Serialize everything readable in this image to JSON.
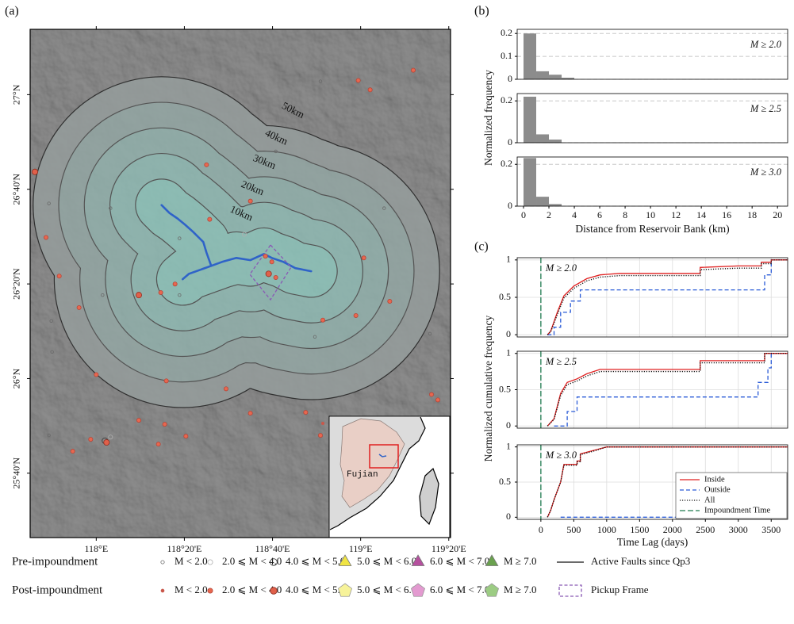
{
  "chart_data": [
    {
      "type": "map",
      "panel_label": "(a)",
      "xlim": [
        117.75,
        119.34
      ],
      "ylim": [
        25.44,
        27.23
      ],
      "xticks": [
        {
          "value": 118,
          "label": "118°E"
        },
        {
          "value": 118.3333,
          "label": "118°20'E"
        },
        {
          "value": 118.6667,
          "label": "118°40'E"
        },
        {
          "value": 119,
          "label": "119°E"
        },
        {
          "value": 119.3333,
          "label": "119°20'E"
        }
      ],
      "yticks": [
        {
          "value": 27,
          "label": "27°N"
        },
        {
          "value": 26.6667,
          "label": "26°40'N"
        },
        {
          "value": 26.3333,
          "label": "26°20'N"
        },
        {
          "value": 26,
          "label": "26°N"
        },
        {
          "value": 25.6667,
          "label": "25°40'N"
        }
      ],
      "reservoir": {
        "color": "#2f63c8",
        "lines": [
          {
            "lon": [
              118.247,
              118.277,
              118.307,
              118.336,
              118.366,
              118.405,
              118.417,
              118.435,
              118.476,
              118.53,
              118.583,
              118.634,
              118.664,
              118.708,
              118.753,
              118.813
            ],
            "lat": [
              26.611,
              26.583,
              26.564,
              26.542,
              26.517,
              26.481,
              26.444,
              26.397,
              26.411,
              26.425,
              26.417,
              26.439,
              26.425,
              26.411,
              26.389,
              26.378
            ]
          },
          {
            "lon": [
              118.435,
              118.351,
              118.327
            ],
            "lat": [
              26.397,
              26.369,
              26.35
            ]
          }
        ]
      },
      "buffers_km": [
        10,
        20,
        30,
        40,
        50
      ],
      "buffer_labels": [
        "10km",
        "20km",
        "30km",
        "40km",
        "50km"
      ],
      "series": [
        {
          "name": "Pre-impoundment",
          "classes": [
            {
              "name": "M < 2.0",
              "marker": "circle",
              "size": 1.8,
              "color": "none",
              "edge": "#6a6a6a",
              "lon": [
                118.848,
                118.024,
                117.83,
                117.821,
                118.054,
                118.315,
                118.315,
                119.089,
                118.827,
                119.262,
                117.833,
                118.679,
                117.821
              ],
              "lat": [
                27.047,
                26.294,
                26.203,
                26.617,
                26.6,
                26.494,
                26.294,
                26.6,
                26.147,
                26.158,
                26.094,
                26.8,
                25.8
              ]
            },
            {
              "name": "2.0 ⩽ M < 4.0",
              "marker": "circle",
              "size": 2.6,
              "color": "none",
              "edge": "#b0b0b0",
              "lon": [
                118.054,
                118.56
              ],
              "lat": [
                25.794,
                26.508
              ]
            },
            {
              "name": "4.0 ⩽ M < 5.0",
              "marker": "circle",
              "size": 3.6,
              "color": "none",
              "edge": "#3a3a3a",
              "lon": [
                118.033
              ],
              "lat": [
                25.781
              ]
            },
            {
              "name": "5.0 ⩽ M <  6.0",
              "marker": "triangle",
              "size": 6,
              "color": "#f0e442",
              "edge": "#777777",
              "lon": [],
              "lat": []
            },
            {
              "name": "6.0 ⩽ M <  7.0",
              "marker": "triangle",
              "size": 6,
              "color": "#b5509e",
              "edge": "#777777",
              "lon": [],
              "lat": []
            },
            {
              "name": "M ≥ 7.0",
              "marker": "triangle",
              "size": 6,
              "color": "#6aa14e",
              "edge": "#777777",
              "lon": [],
              "lat": []
            }
          ]
        },
        {
          "name": "Post-impoundment",
          "classes": [
            {
              "name": "M < 2.0",
              "marker": "circle",
              "size": 1.6,
              "color": "#c9574a",
              "edge": "#c9574a",
              "lon": [
                118.857
              ],
              "lat": [
                25.842
              ]
            },
            {
              "name": "2.0 ⩽ M < 4.0",
              "marker": "circle",
              "size": 2.6,
              "color": "#e8674f",
              "edge": "#b5473a",
              "lon": [
                118.991,
                119.036,
                119.199,
                118.417,
                118.583,
                118.429,
                117.81,
                117.86,
                117.935,
                118.244,
                118.298,
                119.012,
                119.11,
                118.982,
                118.0,
                118.265,
                118.491,
                118.583,
                118.792,
                118.848,
                118.161,
                118.259,
                118.339,
                117.979,
                117.911,
                118.235,
                119.268,
                119.292,
                118.857,
                118.64,
                118.679,
                118.664
              ],
              "lat": [
                27.05,
                27.017,
                27.086,
                26.753,
                26.625,
                26.561,
                26.497,
                26.361,
                26.25,
                26.303,
                26.333,
                26.425,
                26.272,
                26.222,
                26.014,
                25.992,
                25.964,
                25.878,
                25.881,
                25.8,
                25.853,
                25.839,
                25.797,
                25.786,
                25.744,
                25.769,
                25.944,
                25.925,
                26.206,
                26.431,
                26.356,
                26.411
              ]
            },
            {
              "name": "4.0 ⩽ M < 5.0",
              "marker": "circle",
              "size": 3.6,
              "color": "#e0604a",
              "edge": "#8f2f22",
              "lon": [
                118.161,
                118.652,
                118.039,
                117.768
              ],
              "lat": [
                26.294,
                26.369,
                25.775,
                26.728
              ]
            },
            {
              "name": "5.0 ⩽ M <  6.0",
              "marker": "pentagon",
              "size": 6,
              "color": "#f7f39a",
              "edge": "#999999",
              "lon": [],
              "lat": []
            },
            {
              "name": "6.0 ⩽ M <  7.0",
              "marker": "pentagon",
              "size": 6,
              "color": "#e39ad0",
              "edge": "#999999",
              "lon": [],
              "lat": []
            },
            {
              "name": "M ≥ 7.0",
              "marker": "pentagon",
              "size": 6,
              "color": "#9ccc83",
              "edge": "#999999",
              "lon": [],
              "lat": []
            }
          ]
        }
      ],
      "faults_label": "Active Faults since Qp3",
      "pickup_frame_label": "Pickup Frame",
      "inset_label": "Fujian"
    },
    {
      "type": "histogram",
      "panel_label": "(b)",
      "ylabel": "Normalized frequency",
      "annotation": "M ≥ 2.0",
      "bins": [
        0,
        1,
        2,
        3,
        4
      ],
      "values": [
        0.2,
        0.035,
        0.02,
        0.007
      ],
      "color": "#8c8c8c",
      "xlim": [
        -0.5,
        20.8
      ],
      "ylim": [
        0,
        0.218
      ],
      "yticks": [
        0,
        0.1,
        0.2
      ],
      "grid": true
    },
    {
      "type": "histogram",
      "annotation": "M ≥ 2.5",
      "bins": [
        0,
        1,
        2,
        3
      ],
      "values": [
        0.22,
        0.04,
        0.015
      ],
      "color": "#8c8c8c",
      "xlim": [
        -0.5,
        20.8
      ],
      "ylim": [
        0,
        0.235
      ],
      "yticks": [
        0,
        0.2
      ],
      "grid": true
    },
    {
      "type": "histogram",
      "annotation": "M ≥ 3.0",
      "xlabel": "Distance from Reservoir Bank (km)",
      "bins": [
        0,
        1,
        2,
        3
      ],
      "values": [
        0.23,
        0.045,
        0.01
      ],
      "color": "#8c8c8c",
      "xlim": [
        -0.5,
        20.8
      ],
      "ylim": [
        0,
        0.235
      ],
      "yticks": [
        0,
        0.2
      ],
      "xticks": [
        0,
        2,
        4,
        6,
        8,
        10,
        12,
        14,
        16,
        18,
        20
      ],
      "grid": true
    },
    {
      "type": "line",
      "panel_label": "(c)",
      "ylabel": "Normalized cumulative frequency",
      "annotation": "M ≥ 2.0",
      "xlim": [
        -360,
        3750
      ],
      "ylim": [
        -0.03,
        1.03
      ],
      "yticks": [
        0,
        0.5,
        1
      ],
      "grid": true,
      "legend": false,
      "series": [
        {
          "color": "#2a5bd7",
          "dash": "dashed",
          "x": [
            100,
            200,
            200,
            300,
            300,
            450,
            450,
            600,
            600,
            3400,
            3400,
            3500,
            3500,
            3750
          ],
          "values": [
            0,
            0,
            0.1,
            0.1,
            0.3,
            0.3,
            0.45,
            0.45,
            0.6,
            0.6,
            0.8,
            0.8,
            1,
            1
          ]
        },
        {
          "color": "#e02020",
          "dash": "solid",
          "x": [
            100,
            150,
            250,
            350,
            500,
            700,
            900,
            1200,
            2420,
            2420,
            3000,
            3350,
            3350,
            3500,
            3500,
            3750
          ],
          "values": [
            0,
            0.05,
            0.3,
            0.52,
            0.65,
            0.75,
            0.8,
            0.82,
            0.82,
            0.9,
            0.92,
            0.92,
            0.97,
            0.97,
            1,
            1
          ]
        },
        {
          "color": "#111111",
          "dash": "dotted",
          "x": [
            100,
            150,
            250,
            350,
            500,
            700,
            900,
            1200,
            2420,
            2420,
            3000,
            3350,
            3350,
            3500,
            3500,
            3750
          ],
          "values": [
            0,
            0.04,
            0.27,
            0.49,
            0.62,
            0.72,
            0.77,
            0.79,
            0.79,
            0.87,
            0.89,
            0.89,
            0.95,
            0.95,
            1,
            1
          ]
        }
      ],
      "vlines": [
        {
          "color": "#1e7a4e",
          "dash": "longdash",
          "x": 0
        }
      ]
    },
    {
      "type": "line",
      "annotation": "M ≥ 2.5",
      "xlim": [
        -360,
        3750
      ],
      "ylim": [
        -0.03,
        1.03
      ],
      "yticks": [
        0,
        0.5,
        1
      ],
      "grid": true,
      "legend": false,
      "series": [
        {
          "color": "#2a5bd7",
          "dash": "dashed",
          "x": [
            200,
            400,
            400,
            550,
            550,
            3300,
            3300,
            3450,
            3450,
            3500,
            3500,
            3750
          ],
          "values": [
            0,
            0,
            0.2,
            0.2,
            0.4,
            0.4,
            0.6,
            0.6,
            0.8,
            0.8,
            1,
            1
          ]
        },
        {
          "color": "#e02020",
          "dash": "solid",
          "x": [
            100,
            200,
            300,
            400,
            550,
            700,
            900,
            2420,
            2420,
            3400,
            3400,
            3750
          ],
          "values": [
            0,
            0.1,
            0.45,
            0.6,
            0.65,
            0.72,
            0.78,
            0.78,
            0.9,
            0.9,
            1,
            1
          ]
        },
        {
          "color": "#111111",
          "dash": "dotted",
          "x": [
            100,
            200,
            300,
            400,
            550,
            700,
            900,
            2420,
            2420,
            3400,
            3400,
            3750
          ],
          "values": [
            0,
            0.09,
            0.42,
            0.57,
            0.62,
            0.69,
            0.75,
            0.75,
            0.87,
            0.87,
            1,
            1
          ]
        }
      ],
      "vlines": [
        {
          "color": "#1e7a4e",
          "dash": "longdash",
          "x": 0
        }
      ]
    },
    {
      "type": "line",
      "annotation": "M ≥ 3.0",
      "xlabel": "Time Lag (days)",
      "xlim": [
        -360,
        3750
      ],
      "ylim": [
        -0.03,
        1.03
      ],
      "yticks": [
        0,
        0.5,
        1
      ],
      "xticks": [
        0,
        500,
        1000,
        1500,
        2000,
        2500,
        3000,
        3500
      ],
      "grid": true,
      "legend": "lower right",
      "series": [
        {
          "name": "Inside",
          "color": "#e02020",
          "dash": "solid",
          "x": [
            100,
            150,
            200,
            300,
            350,
            550,
            550,
            600,
            600,
            800,
            1000,
            3750
          ],
          "values": [
            0,
            0.1,
            0.25,
            0.5,
            0.75,
            0.75,
            0.8,
            0.8,
            0.9,
            0.95,
            1,
            1
          ]
        },
        {
          "name": "Outside",
          "color": "#2a5bd7",
          "dash": "dashed",
          "x": [
            300,
            3750
          ],
          "values": [
            0,
            0
          ]
        },
        {
          "name": "All",
          "color": "#111111",
          "dash": "dotted",
          "x": [
            100,
            150,
            200,
            300,
            350,
            550,
            550,
            600,
            600,
            800,
            1000,
            3750
          ],
          "values": [
            0,
            0.1,
            0.25,
            0.5,
            0.74,
            0.74,
            0.79,
            0.79,
            0.89,
            0.94,
            1,
            1
          ]
        }
      ],
      "vlines": [
        {
          "name": "Impoundment Time",
          "color": "#1e7a4e",
          "dash": "longdash",
          "x": 0
        }
      ]
    }
  ]
}
